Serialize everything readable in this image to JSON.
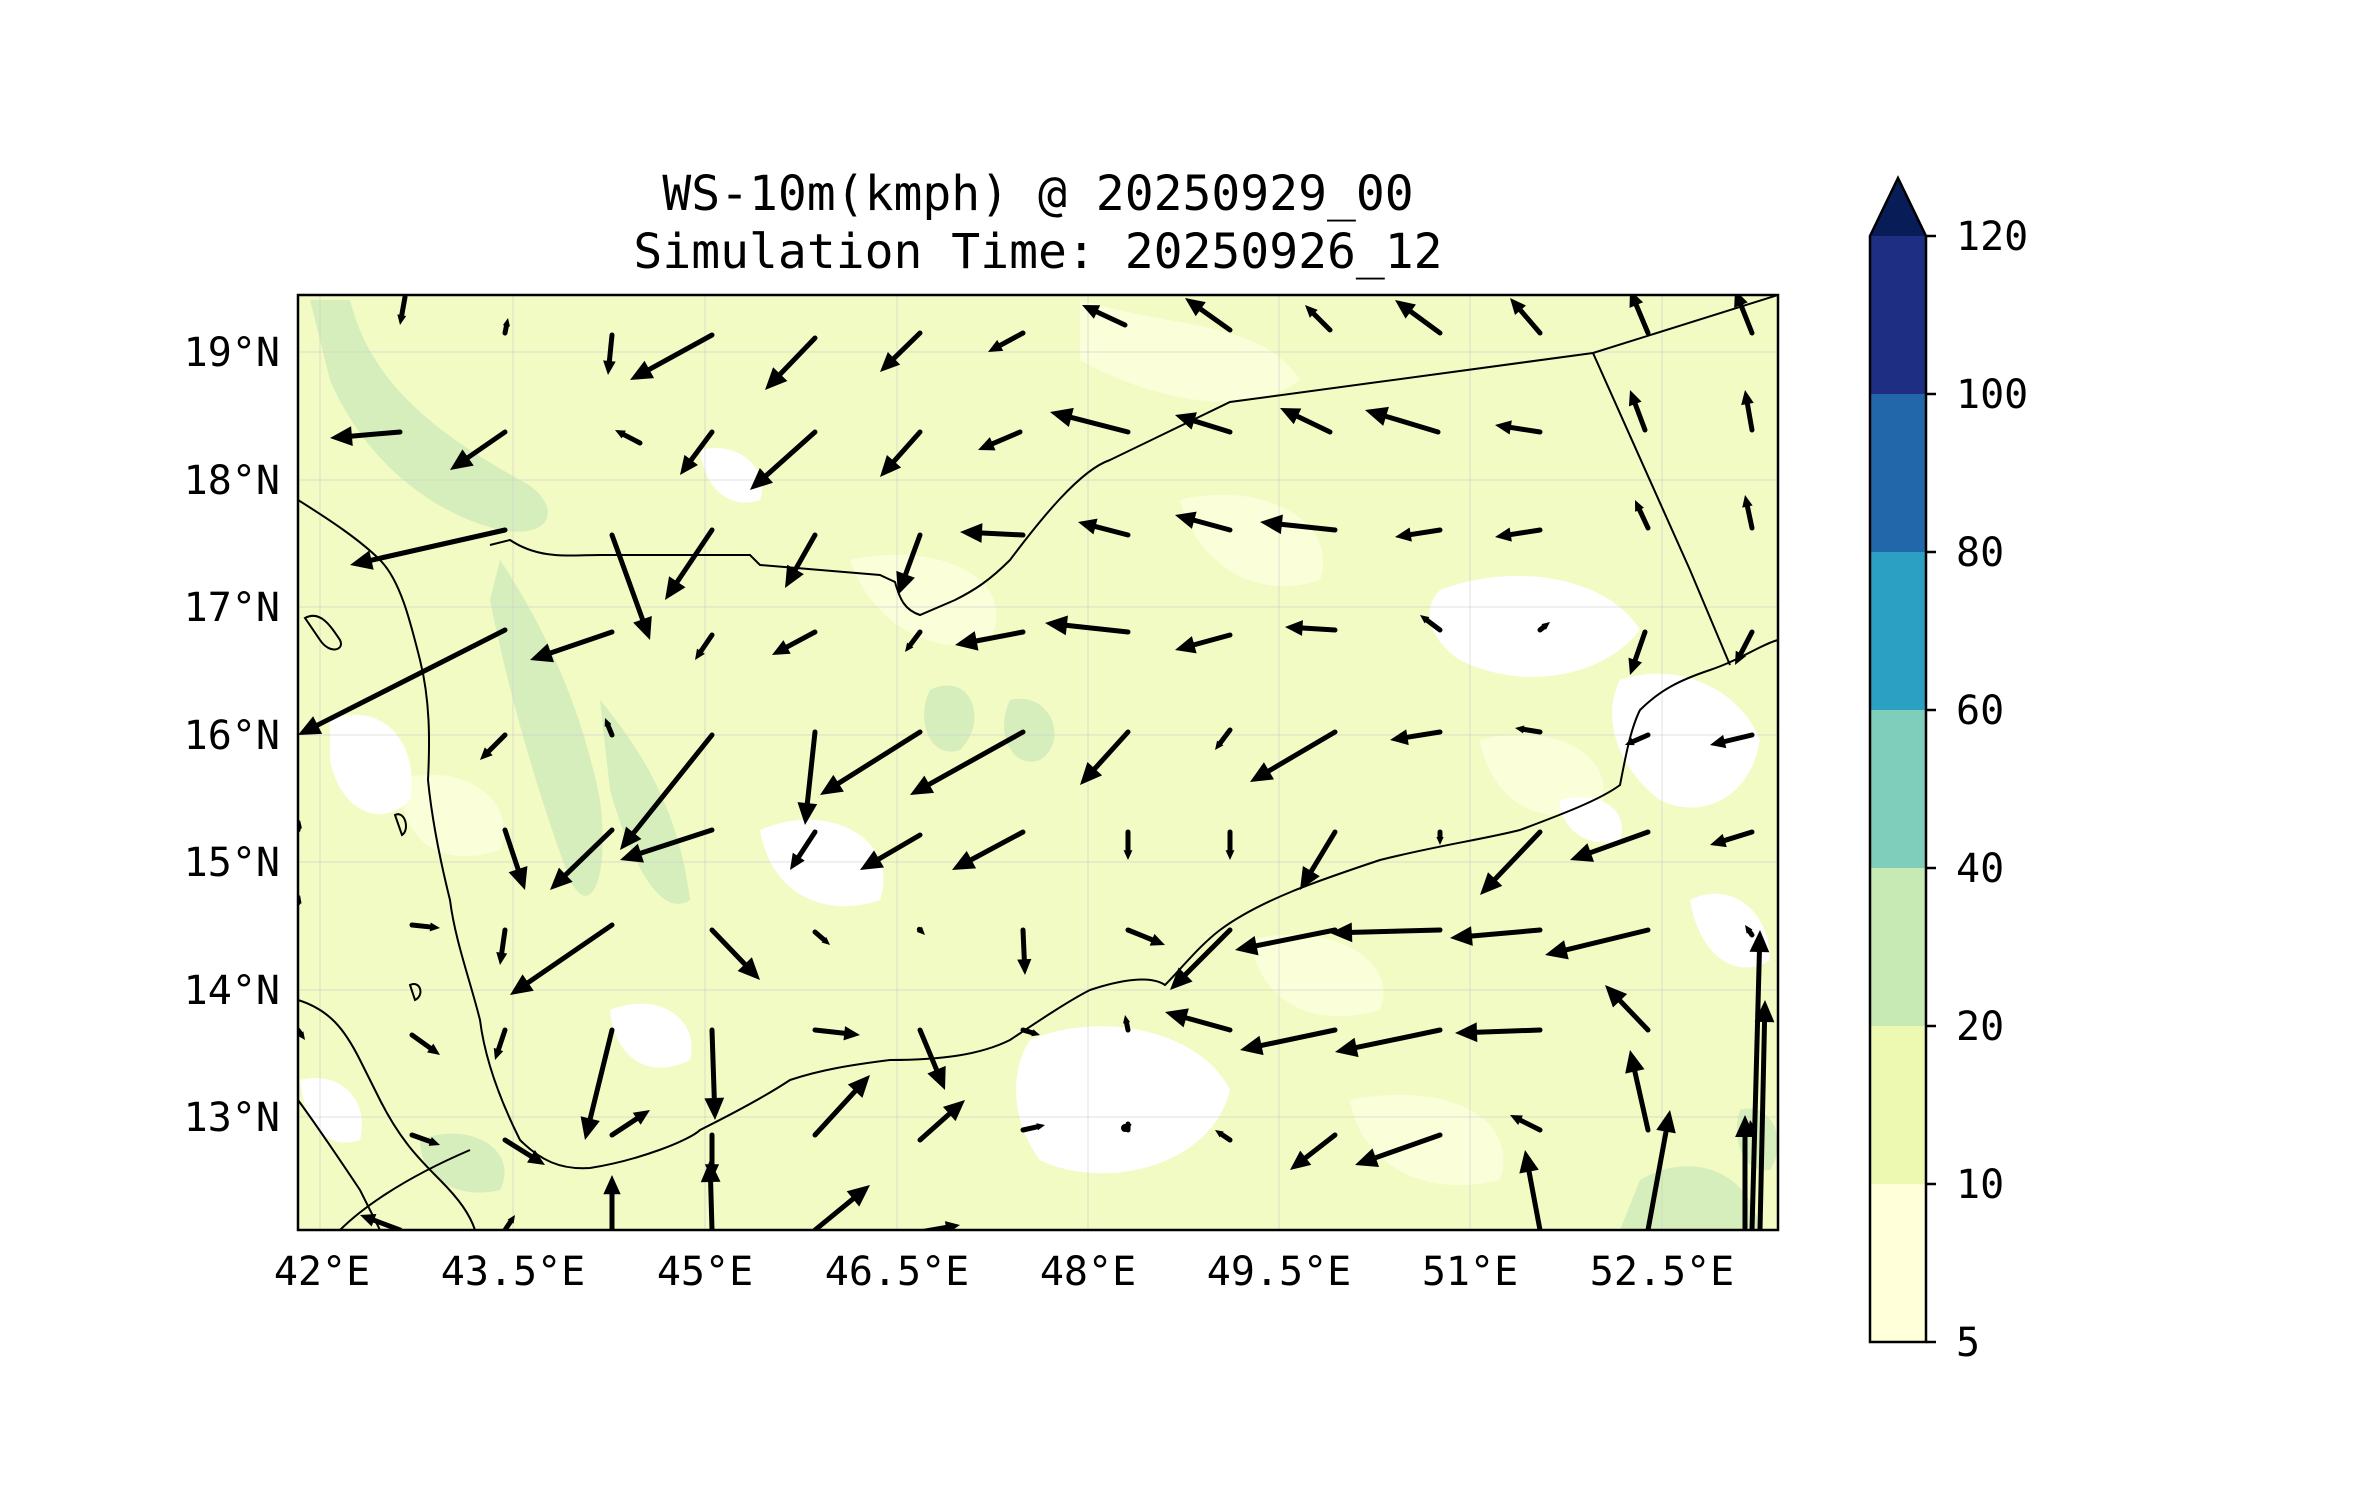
{
  "title": {
    "line1": "WS-10m(kmph) @ 20250929_00",
    "line2": "Simulation Time: 20250926_12"
  },
  "map": {
    "lon_labels": [
      "42°E",
      "43.5°E",
      "45°E",
      "46.5°E",
      "48°E",
      "49.5°E",
      "51°E",
      "52.5°E"
    ],
    "lat_labels": [
      "19°N",
      "18°N",
      "17°N",
      "16°N",
      "15°N",
      "14°N",
      "13°N"
    ]
  },
  "colorbar": {
    "labels": [
      "5",
      "10",
      "20",
      "40",
      "60",
      "80",
      "100",
      "120"
    ],
    "colors": [
      "#ffffd9",
      "#edf8b1",
      "#c7e9b4",
      "#7fcdbb",
      "#2ca0c2",
      "#2367ab",
      "#1d2e83",
      "#081d58"
    ]
  },
  "colors": {
    "land_base": "#f3fbc5",
    "light_patch": "#fafed9",
    "green_patch": "#d5eebb",
    "white_patch": "#ffffff",
    "border": "#000000"
  }
}
